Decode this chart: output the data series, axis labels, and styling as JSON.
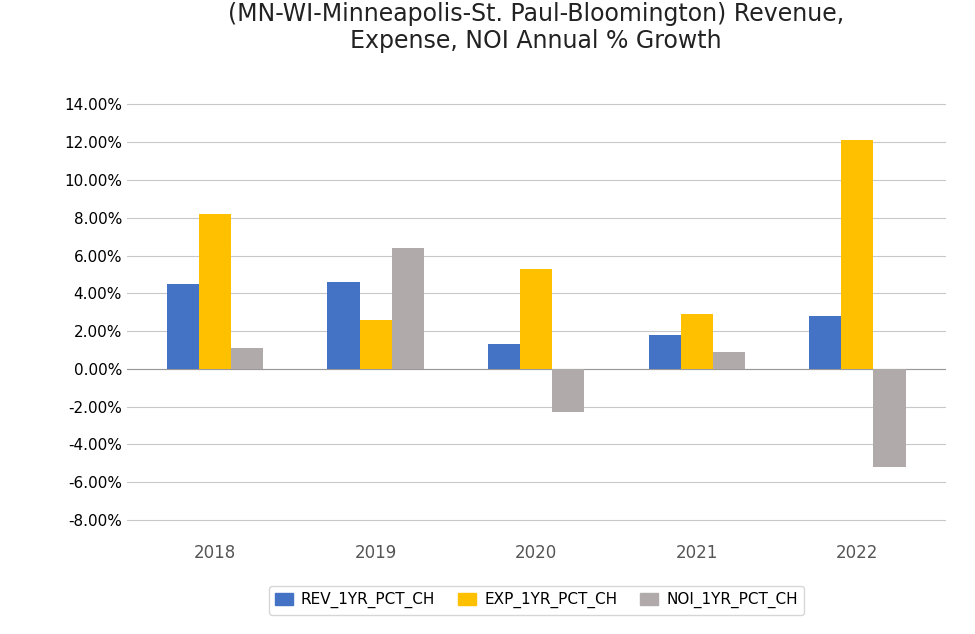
{
  "title": "(MN-WI-Minneapolis-St. Paul-Bloomington) Revenue,\nExpense, NOI Annual % Growth",
  "years": [
    "2018",
    "2019",
    "2020",
    "2021",
    "2022"
  ],
  "series": {
    "REV_1YR_PCT_CH": [
      0.045,
      0.046,
      0.013,
      0.018,
      0.028
    ],
    "EXP_1YR_PCT_CH": [
      0.082,
      0.026,
      0.053,
      0.029,
      0.121
    ],
    "NOI_1YR_PCT_CH": [
      0.011,
      0.064,
      -0.023,
      0.009,
      -0.052
    ]
  },
  "colors": {
    "REV_1YR_PCT_CH": "#4472C4",
    "EXP_1YR_PCT_CH": "#FFC000",
    "NOI_1YR_PCT_CH": "#B0AAAA"
  },
  "legend_labels": [
    "REV_1YR_PCT_CH",
    "EXP_1YR_PCT_CH",
    "NOI_1YR_PCT_CH"
  ],
  "ylim": [
    -0.09,
    0.155
  ],
  "yticks": [
    -0.08,
    -0.06,
    -0.04,
    -0.02,
    0.0,
    0.02,
    0.04,
    0.06,
    0.08,
    0.1,
    0.12,
    0.14
  ],
  "background_color": "#ffffff",
  "grid_color": "#c8c8c8",
  "title_fontsize": 17,
  "bar_width": 0.2,
  "figsize": [
    9.75,
    6.34
  ],
  "dpi": 100
}
